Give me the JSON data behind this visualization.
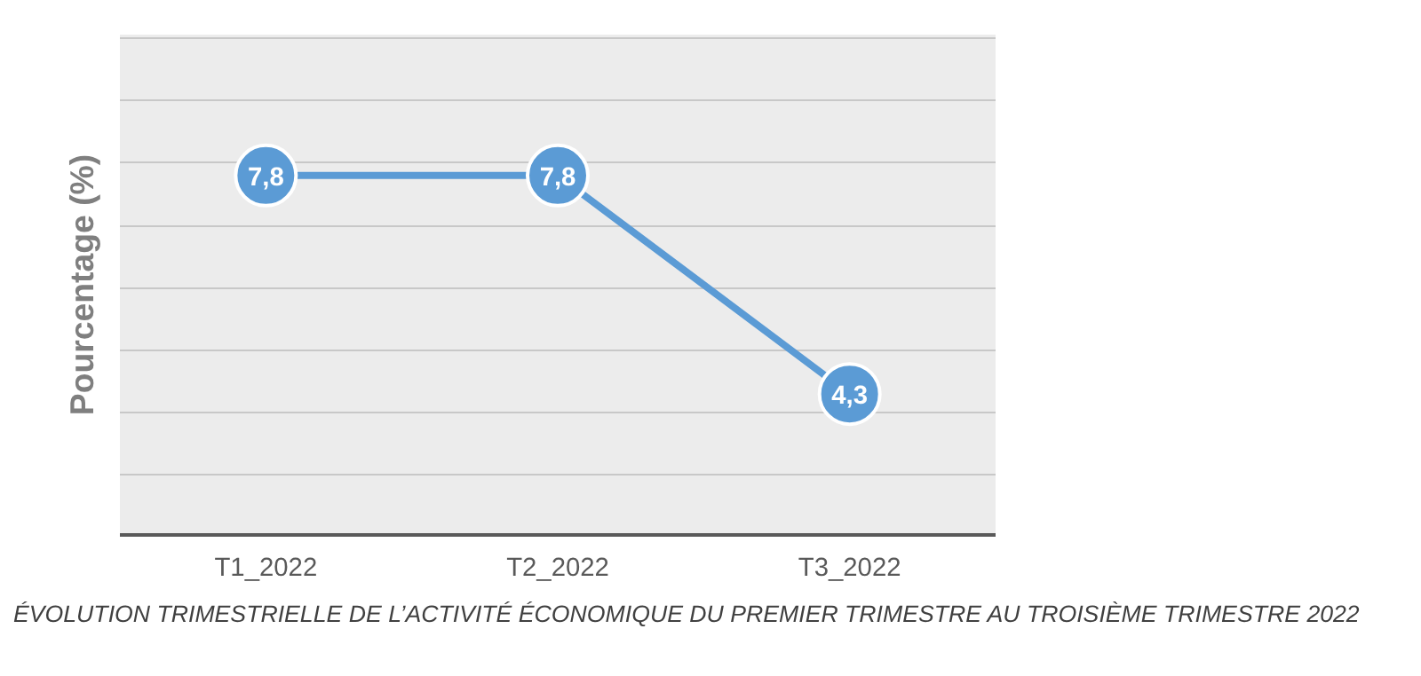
{
  "chart_data": {
    "type": "line",
    "ylabel": "Pourcentage (%)",
    "categories": [
      "T1_2022",
      "T2_2022",
      "T3_2022"
    ],
    "series": [
      {
        "color": "#5b9bd5",
        "values": [
          7.8,
          7.8,
          4.3
        ],
        "value_labels": [
          "7,8",
          "7,8",
          "4,3"
        ]
      }
    ],
    "tick_labels": "x",
    "grid": "y",
    "marker": "circle",
    "line_style": "solid",
    "annotations": [
      "ÉVOLUTION TRIMESTRIELLE DE L’ACTIVITÉ ÉCONOMIQUE DU PREMIER TRIMESTRE AU TROISIÈME TRIMESTRE 2022"
    ]
  }
}
